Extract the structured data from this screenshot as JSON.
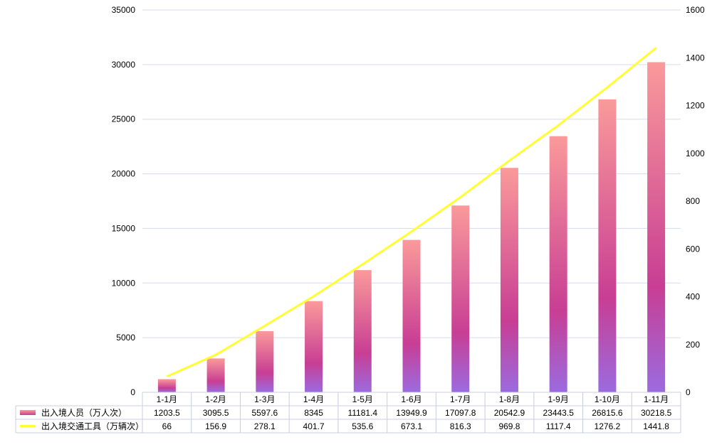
{
  "chart_data": {
    "type": "bar",
    "categories": [
      "1-1月",
      "1-2月",
      "1-3月",
      "1-4月",
      "1-5月",
      "1-6月",
      "1-7月",
      "1-8月",
      "1-9月",
      "1-10月",
      "1-11月"
    ],
    "series": [
      {
        "name": "出入境人员（万人次）",
        "type": "bar",
        "axis": "left",
        "color_top": "#FA9A9A",
        "color_mid": "#C83E94",
        "color_bottom": "#9B6BE0",
        "values": [
          1203.5,
          3095.5,
          5597.6,
          8345,
          11181.4,
          13949.9,
          17097.8,
          20542.9,
          23443.5,
          26815.6,
          30218.5
        ],
        "value_labels": [
          "1203.5",
          "3095.5",
          "5597.6",
          "8345",
          "11181.4",
          "13949.9",
          "17097.8",
          "20542.9",
          "23443.5",
          "26815.6",
          "30218.5"
        ]
      },
      {
        "name": "出入境交通工具（万辆次）",
        "type": "line",
        "axis": "right",
        "color": "#FFFF33",
        "values": [
          66,
          156.9,
          278.1,
          401.7,
          535.6,
          673.1,
          816.3,
          969.8,
          1117.4,
          1276.2,
          1441.8
        ],
        "value_labels": [
          "66",
          "156.9",
          "278.1",
          "401.7",
          "535.6",
          "673.1",
          "816.3",
          "969.8",
          "1117.4",
          "1276.2",
          "1441.8"
        ]
      }
    ],
    "y_left": {
      "min": 0,
      "max": 35000,
      "ticks": [
        "0",
        "5000",
        "10000",
        "15000",
        "20000",
        "25000",
        "30000",
        "35000"
      ]
    },
    "y_right": {
      "min": 0,
      "max": 1600,
      "ticks": [
        "0",
        "200",
        "400",
        "600",
        "800",
        "1000",
        "1200",
        "1400",
        "1600"
      ]
    },
    "grid": true,
    "legend": "data-table-below",
    "colors": {
      "grid": "#D5DBEF",
      "axis": "#C8CCE0",
      "table_border": "#C8CCE0",
      "text": "#000000"
    }
  }
}
